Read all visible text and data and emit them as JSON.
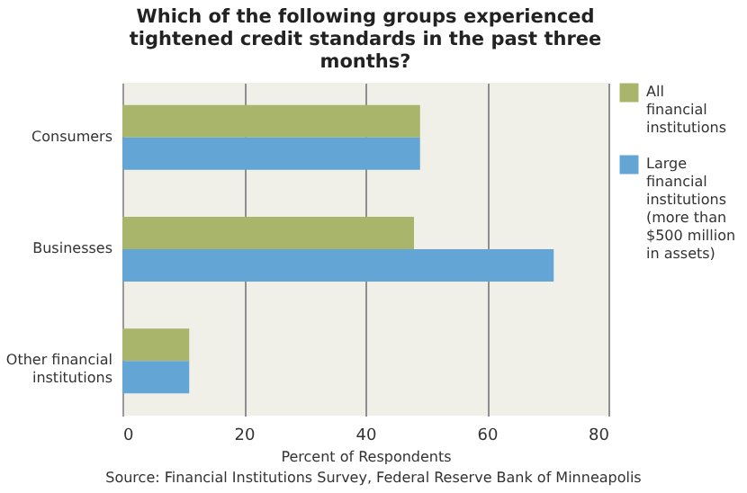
{
  "chart_data": {
    "type": "bar",
    "orientation": "horizontal",
    "title": "Which of the following groups experienced tightened credit standards in the past three months?",
    "xlabel": "Percent of Respondents",
    "categories": [
      "Consumers",
      "Businesses",
      "Other financial institutions"
    ],
    "series": [
      {
        "name": "All financial institutions",
        "color": "#a9b56b",
        "values": [
          49,
          48,
          11
        ]
      },
      {
        "name": "Large financial institutions (more than $500 million in assets)",
        "color": "#63a6d6",
        "values": [
          49,
          71,
          11
        ]
      }
    ],
    "xlim": [
      0,
      80
    ],
    "xticks": [
      0,
      20,
      40,
      60,
      80
    ],
    "grid": "x",
    "legend": "right",
    "annotations": [
      "Source: Financial Institutions Survey, Federal Reserve Bank of Minneapolis"
    ]
  }
}
